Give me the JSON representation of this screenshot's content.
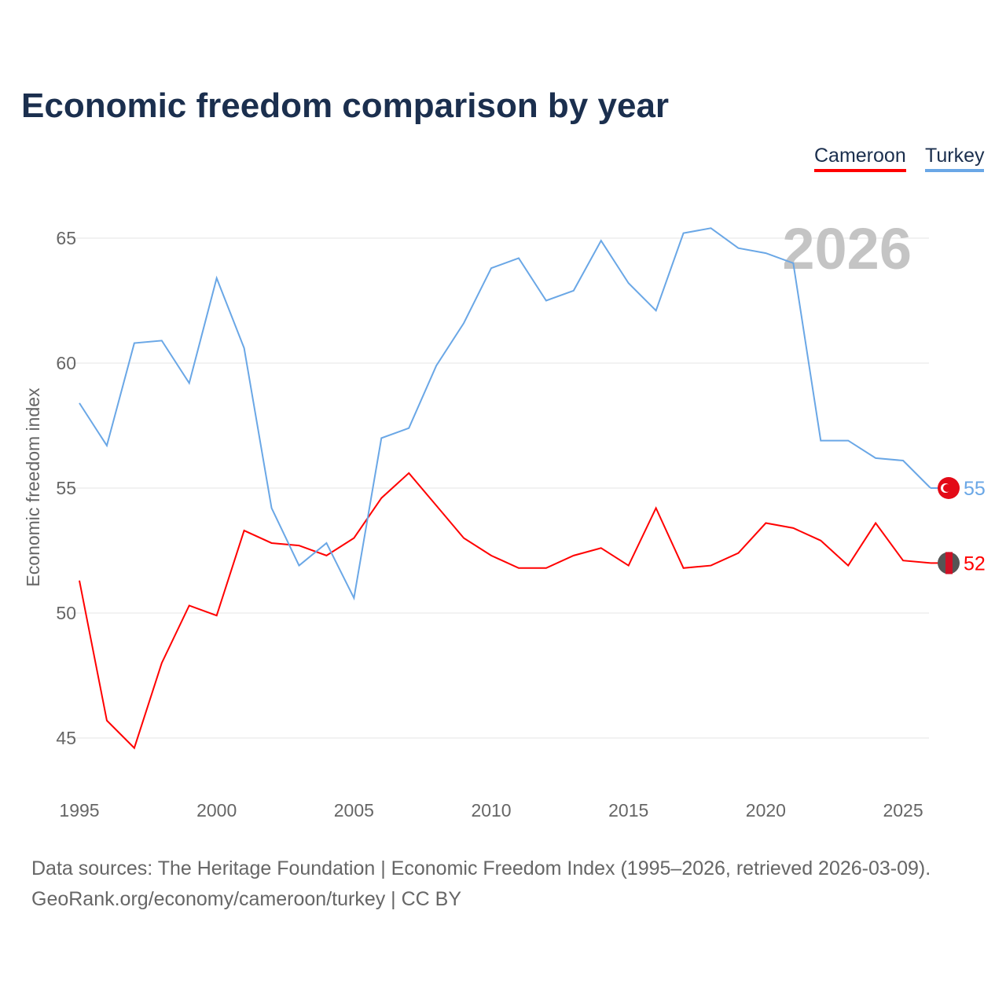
{
  "title": "Economic freedom comparison by year",
  "year_watermark": "2026",
  "source_line1": "Data sources: The Heritage Foundation | Economic Freedom Index (1995–2026, retrieved 2026-03-09).",
  "source_line2": "GeoRank.org/economy/cameroon/turkey | CC BY",
  "chart_data": {
    "type": "line",
    "title": "Economic freedom comparison by year",
    "xlabel": "",
    "ylabel": "Economic freedom index",
    "xlim": [
      1995,
      2026
    ],
    "ylim": [
      43,
      67
    ],
    "xticks": [
      1995,
      2000,
      2005,
      2010,
      2015,
      2020,
      2025
    ],
    "yticks": [
      45,
      50,
      55,
      60,
      65
    ],
    "grid": true,
    "legend": "top-right",
    "x": [
      1995,
      1996,
      1997,
      1998,
      1999,
      2000,
      2001,
      2002,
      2003,
      2004,
      2005,
      2006,
      2007,
      2008,
      2009,
      2010,
      2011,
      2012,
      2013,
      2014,
      2015,
      2016,
      2017,
      2018,
      2019,
      2020,
      2021,
      2022,
      2023,
      2024,
      2025,
      2026
    ],
    "series": [
      {
        "name": "Cameroon",
        "color": "#ff0000",
        "end_label": "52",
        "values": [
          51.3,
          45.7,
          44.6,
          48.0,
          50.3,
          49.9,
          53.3,
          52.8,
          52.7,
          52.3,
          53.0,
          54.6,
          55.6,
          54.3,
          53.0,
          52.3,
          51.8,
          51.8,
          52.3,
          52.6,
          51.9,
          54.2,
          51.8,
          51.9,
          52.4,
          53.6,
          53.4,
          52.9,
          51.9,
          53.6,
          52.1,
          52.0
        ]
      },
      {
        "name": "Turkey",
        "color": "#6aa7e6",
        "end_label": "55",
        "values": [
          58.4,
          56.7,
          60.8,
          60.9,
          59.2,
          63.4,
          60.6,
          54.2,
          51.9,
          52.8,
          50.6,
          57.0,
          57.4,
          59.9,
          61.6,
          63.8,
          64.2,
          62.5,
          62.9,
          64.9,
          63.2,
          62.1,
          65.2,
          65.4,
          64.6,
          64.4,
          64.0,
          56.9,
          56.9,
          56.2,
          56.1,
          55.0
        ]
      }
    ]
  }
}
